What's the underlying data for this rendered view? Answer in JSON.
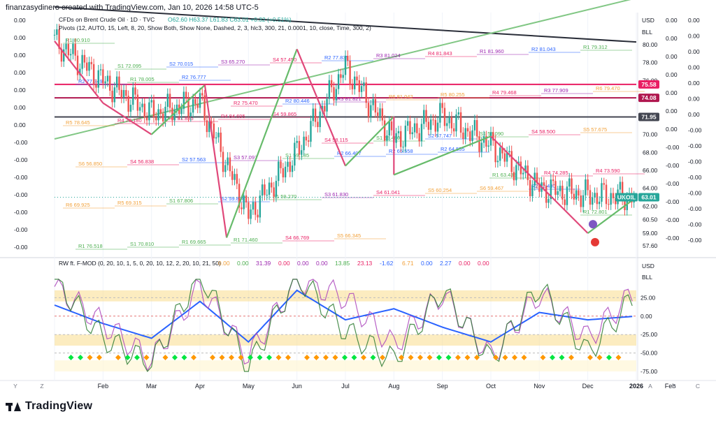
{
  "credit": "finanzasydinero created with TradingView.com, Jan 10, 2026 14:58 UTC-5",
  "brand": "TradingView",
  "legend": {
    "symbol_line": "CFDs on Brent Crude Oil · 1D · TVC",
    "ohlc": "O62.60 H63.37 L61.83 C63.01 +0.32 (+0.51%)",
    "pivots_line": "Pivots (12, AUTO, 15, Left, 8, 20, Show Both, Show None, Dashed, 2, 3, hlc3, 300, 21, 0.0001, 10, close, Time, 300, 2)",
    "osc_name": "RW ft. F-MOD (0, 20, 10, 1, 5, 0, 20, 10, 12, 2, 20, 10, 21, 50)",
    "osc_values": [
      {
        "text": "0.00",
        "color": "#f2a13a"
      },
      {
        "text": "0.00",
        "color": "#4caf50"
      },
      {
        "text": "31.39",
        "color": "#9c27b0"
      },
      {
        "text": "0.00",
        "color": "#e91e63"
      },
      {
        "text": "0.00",
        "color": "#9c27b0"
      },
      {
        "text": "0.00",
        "color": "#9c27b0"
      },
      {
        "text": "13.85",
        "color": "#4caf50"
      },
      {
        "text": "23.13",
        "color": "#e91e63"
      },
      {
        "text": "-1.62",
        "color": "#2962ff"
      },
      {
        "text": "6.71",
        "color": "#f2a13a"
      },
      {
        "text": "0.00",
        "color": "#2962ff"
      },
      {
        "text": "2.27",
        "color": "#2962ff"
      },
      {
        "text": "0.00",
        "color": "#e91e63"
      },
      {
        "text": "0.00",
        "color": "#e91e63"
      }
    ]
  },
  "right_scale": {
    "currency": "USD",
    "scale_mode": "BLL",
    "ticks": [
      "80.00",
      "78.00",
      "76.00",
      "74.00",
      "72.00",
      "70.00",
      "68.00",
      "66.00",
      "64.00",
      "62.00",
      "60.50",
      "59.00",
      "57.60"
    ],
    "badges": [
      {
        "text": "75.58",
        "color": "#e91e63"
      },
      {
        "text": "74.08",
        "color": "#b0174f"
      },
      {
        "text": "71.95",
        "color": "#434651"
      },
      {
        "text": "UKOIL",
        "color": "#26a69a"
      },
      {
        "text": "63.01",
        "color": "#26a69a"
      }
    ]
  },
  "far_right_labels": [
    "0.00",
    "0.00",
    "0.00",
    "0.00",
    "0.00",
    "0.00",
    "0.00",
    "-0.00",
    "-0.00",
    "-0.00",
    "-0.00",
    "-0.00",
    "-0.00",
    "-0.00",
    "-0.00"
  ],
  "left_labels": [
    "0.00",
    "0.00",
    "0.00",
    "0.00",
    "0.00",
    "0.00",
    "0.00",
    "-0.00",
    "-0.00",
    "-0.00",
    "-0.00",
    "-0.00",
    "-0.00",
    "-0.00"
  ],
  "osc_scale": {
    "currency": "USD",
    "scale_mode": "BLL",
    "ticks": [
      "25.00",
      "0.00",
      "-25.00",
      "-50.00",
      "-75.00"
    ]
  },
  "time_axis": {
    "left_buttons": [
      "Y",
      "Z"
    ],
    "months": [
      "Feb",
      "Mar",
      "Apr",
      "May",
      "Jun",
      "Jul",
      "Aug",
      "Sep",
      "Oct",
      "Nov",
      "Dec",
      "2026",
      "Feb"
    ],
    "right_buttons": [
      "A",
      "B",
      "C"
    ]
  },
  "pivot_tags": [
    {
      "text": "R1 80.910",
      "color": "#4caf50"
    },
    {
      "text": "S1 72.095",
      "color": "#4caf50"
    },
    {
      "text": "S2 70.015",
      "color": "#2962ff"
    },
    {
      "text": "S3 65.270",
      "color": "#9c27b0"
    },
    {
      "text": "S4 57.450",
      "color": "#e91e63"
    },
    {
      "text": "R2 77.835",
      "color": "#2962ff"
    },
    {
      "text": "R3 81.024",
      "color": "#9c27b0"
    },
    {
      "text": "R4 81.843",
      "color": "#e91e63"
    },
    {
      "text": "R1 81.960",
      "color": "#9c27b0"
    },
    {
      "text": "R2 81.043",
      "color": "#2962ff"
    },
    {
      "text": "R1 79.312",
      "color": "#4caf50"
    },
    {
      "text": "R2 77.349",
      "color": "#2962ff"
    },
    {
      "text": "R1 78.005",
      "color": "#4caf50"
    },
    {
      "text": "R2 76.777",
      "color": "#2962ff"
    },
    {
      "text": "R2 75.470",
      "color": "#e91e63"
    },
    {
      "text": "R2 80.446",
      "color": "#2962ff"
    },
    {
      "text": "R3 81.821",
      "color": "#9c27b0"
    },
    {
      "text": "R6 81.042",
      "color": "#f2a13a"
    },
    {
      "text": "R5 80.255",
      "color": "#f2a13a"
    },
    {
      "text": "R4 79.468",
      "color": "#e91e63"
    },
    {
      "text": "R3 77.909",
      "color": "#9c27b0"
    },
    {
      "text": "R6 79.470",
      "color": "#f2a13a"
    },
    {
      "text": "R5 78.645",
      "color": "#f2a13a"
    },
    {
      "text": "R4 78.180",
      "color": "#e91e63"
    },
    {
      "text": "R4 81.885",
      "color": "#e91e63"
    },
    {
      "text": "R4 84.695",
      "color": "#e91e63"
    },
    {
      "text": "S4 59.865",
      "color": "#e91e63"
    },
    {
      "text": "S4 58.115",
      "color": "#e91e63"
    },
    {
      "text": "S1 58.480",
      "color": "#4caf50"
    },
    {
      "text": "S2 57.747",
      "color": "#2962ff"
    },
    {
      "text": "S1 58.090",
      "color": "#4caf50"
    },
    {
      "text": "S4 58.500",
      "color": "#e91e63"
    },
    {
      "text": "S5 57.675",
      "color": "#f2a13a"
    },
    {
      "text": "S6 56.850",
      "color": "#f2a13a"
    },
    {
      "text": "S4 56.838",
      "color": "#e91e63"
    },
    {
      "text": "S2 57.563",
      "color": "#2962ff"
    },
    {
      "text": "S3 57.097",
      "color": "#9c27b0"
    },
    {
      "text": "S1 59.185",
      "color": "#4caf50"
    },
    {
      "text": "R2 66.407",
      "color": "#2962ff"
    },
    {
      "text": "R2 65.558",
      "color": "#2962ff"
    },
    {
      "text": "R2 64.555",
      "color": "#2962ff"
    },
    {
      "text": "R1 63.433",
      "color": "#4caf50"
    },
    {
      "text": "R4 74.285",
      "color": "#e91e63"
    },
    {
      "text": "R4 73.590",
      "color": "#e91e63"
    },
    {
      "text": "R6 69.925",
      "color": "#f2a13a"
    },
    {
      "text": "R5 69.315",
      "color": "#f2a13a"
    },
    {
      "text": "S1 67.806",
      "color": "#4caf50"
    },
    {
      "text": "S2 59.878",
      "color": "#2962ff"
    },
    {
      "text": "S1 59.270",
      "color": "#4caf50"
    },
    {
      "text": "S3 61.830",
      "color": "#9c27b0"
    },
    {
      "text": "S4 61.041",
      "color": "#e91e63"
    },
    {
      "text": "S5 60.254",
      "color": "#f2a13a"
    },
    {
      "text": "S6 59.467",
      "color": "#f2a13a"
    },
    {
      "text": "R2 72.480",
      "color": "#2962ff"
    },
    {
      "text": "R1 72.801",
      "color": "#4caf50"
    },
    {
      "text": "R1 76.518",
      "color": "#4caf50"
    },
    {
      "text": "S1 70.810",
      "color": "#4caf50"
    },
    {
      "text": "R1 69.665",
      "color": "#4caf50"
    },
    {
      "text": "R1 71.460",
      "color": "#4caf50"
    },
    {
      "text": "S4 66.769",
      "color": "#e91e63"
    },
    {
      "text": "S5 66.345",
      "color": "#f2a13a"
    }
  ],
  "chart_data": [
    {
      "type": "line",
      "title": "CFDs on Brent Crude Oil · 1D · TVC",
      "xlabel": "",
      "ylabel": "",
      "ylim": [
        57.6,
        80.0
      ],
      "x": [
        "Jan",
        "Feb",
        "Mar",
        "Apr",
        "May",
        "Jun",
        "Jul",
        "Aug",
        "Sep",
        "Oct",
        "Nov",
        "Dec",
        "2026"
      ],
      "series": [
        {
          "name": "UKOIL",
          "values": [
            80.4,
            76.0,
            72.3,
            73.6,
            61.0,
            68.0,
            77.5,
            69.5,
            72.0,
            68.8,
            64.0,
            63.2,
            63.0
          ]
        }
      ],
      "zigzag": [
        {
          "x": "Jan",
          "y": 80.4
        },
        {
          "x": "Feb",
          "y": 73.5
        },
        {
          "x": "Mar",
          "y": 70.0
        },
        {
          "x": "Apr",
          "y": 75.5
        },
        {
          "x": "Apr",
          "y": 58.5
        },
        {
          "x": "Jun",
          "y": 79.5
        },
        {
          "x": "Jul",
          "y": 66.5
        },
        {
          "x": "Aug",
          "y": 72.0
        },
        {
          "x": "Aug",
          "y": 65.5
        },
        {
          "x": "Oct",
          "y": 69.8
        },
        {
          "x": "Dec",
          "y": 59.0
        },
        {
          "x": "2026",
          "y": 63.0
        }
      ],
      "trendlines": [
        {
          "color": "#2a2e39",
          "from": {
            "x": "Jan",
            "y": 84.2
          },
          "to": {
            "x": "2026",
            "y": 80.3
          }
        },
        {
          "color": "#81c784",
          "from": {
            "x": "Jan",
            "y": 69.5
          },
          "to": {
            "x": "2026",
            "y": 85.2
          }
        }
      ],
      "hlines": [
        {
          "value": 75.58,
          "color": "#e91e63"
        },
        {
          "value": 74.08,
          "color": "#b0174f"
        },
        {
          "value": 71.95,
          "color": "#434651"
        }
      ],
      "last": {
        "label": "UKOIL",
        "value": 63.01
      }
    },
    {
      "type": "line",
      "title": "RW ft. F-MOD",
      "ylim": [
        -75,
        50
      ],
      "x": [
        "Jan",
        "Feb",
        "Mar",
        "Apr",
        "May",
        "Jun",
        "Jul",
        "Aug",
        "Sep",
        "Oct",
        "Nov",
        "Dec",
        "2026"
      ],
      "series": [
        {
          "name": "blue",
          "values": [
            15,
            -10,
            -30,
            20,
            -35,
            35,
            -5,
            10,
            -15,
            -35,
            5,
            -5,
            0
          ]
        },
        {
          "name": "purple",
          "values": [
            40,
            -10,
            -60,
            40,
            -55,
            50,
            25,
            -40,
            30,
            -55,
            30,
            -30,
            35
          ]
        },
        {
          "name": "green",
          "values": [
            50,
            -30,
            -65,
            60,
            -70,
            55,
            -20,
            -60,
            35,
            -60,
            40,
            -50,
            30
          ]
        }
      ],
      "bands": [
        {
          "from": 20,
          "to": 35,
          "color": "#f9dc8c"
        },
        {
          "from": -40,
          "to": -25,
          "color": "#f9dc8c"
        }
      ]
    }
  ]
}
